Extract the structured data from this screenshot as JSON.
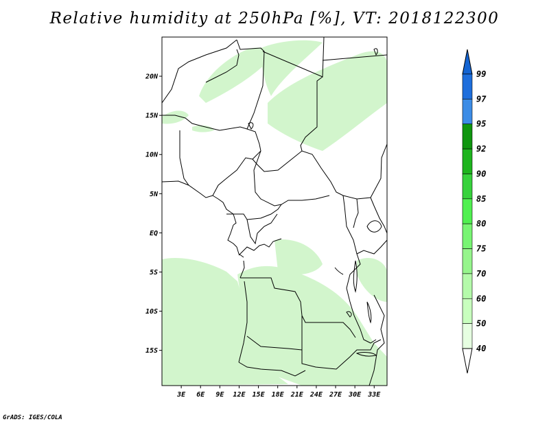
{
  "title": "Relative humidity at 250hPa [%], VT: 2018122300",
  "credit": "GrADS: IGES/COLA",
  "map": {
    "lat_labels": [
      "20N",
      "15N",
      "10N",
      "5N",
      "EQ",
      "5S",
      "10S",
      "15S"
    ],
    "lat_values": [
      20,
      15,
      10,
      5,
      0,
      -5,
      -10,
      -15
    ],
    "lon_labels": [
      "3E",
      "6E",
      "9E",
      "12E",
      "15E",
      "18E",
      "21E",
      "24E",
      "27E",
      "30E",
      "33E"
    ],
    "lon_values": [
      3,
      6,
      9,
      12,
      15,
      18,
      21,
      24,
      27,
      30,
      33
    ],
    "lat_range": [
      -19.5,
      25
    ],
    "lon_range": [
      0,
      35
    ],
    "fill_color": "#d2f5cc"
  },
  "colorbar": {
    "levels": [
      "99",
      "97",
      "95",
      "92",
      "90",
      "85",
      "80",
      "75",
      "70",
      "60",
      "50",
      "40"
    ],
    "colors": [
      "#1464d2",
      "#1e6edc",
      "#3c8ce6",
      "#0f960f",
      "#1eb41e",
      "#37d23c",
      "#50f050",
      "#78f573",
      "#96f58c",
      "#b4faaa",
      "#c8ffbe",
      "#e6ffe1"
    ]
  }
}
